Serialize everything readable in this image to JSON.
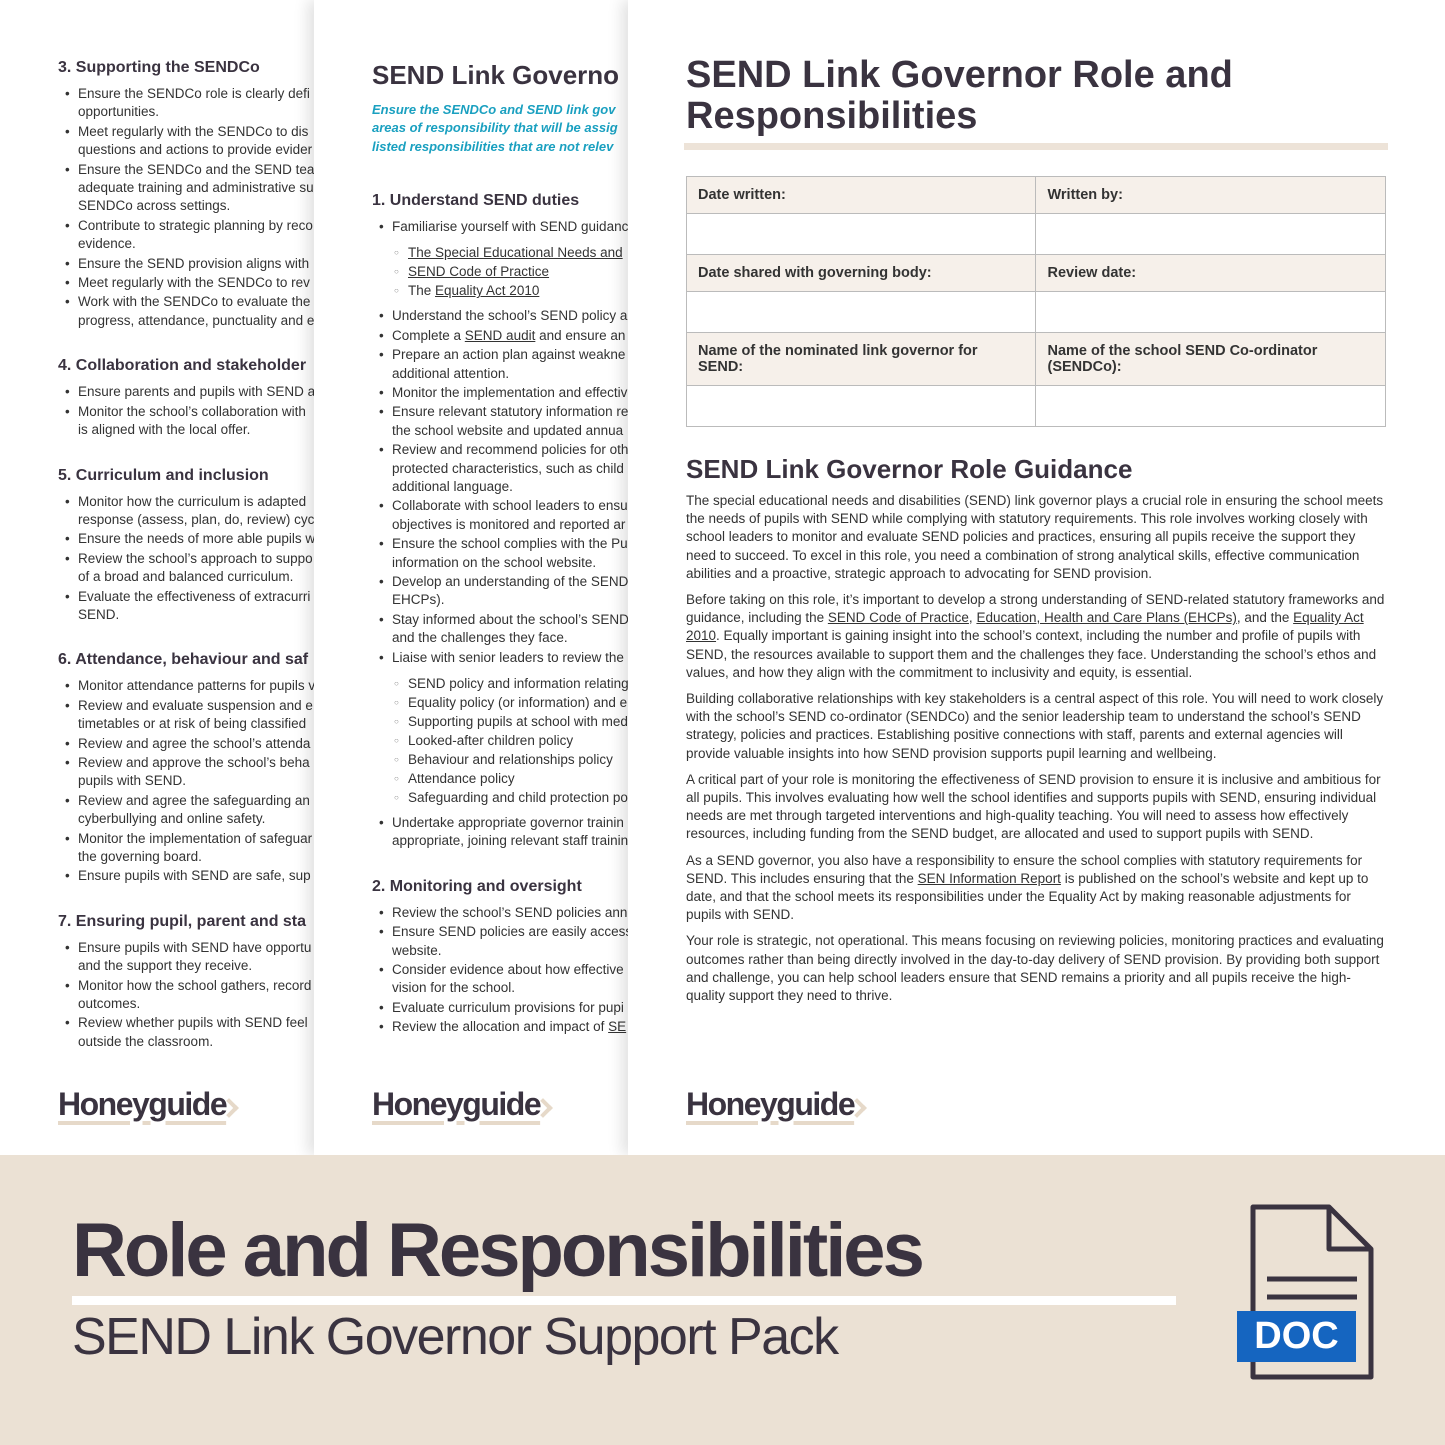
{
  "back_page": {
    "sections": [
      {
        "heading": "3. Supporting the SENDCo",
        "items": [
          {
            "lines": [
              "Ensure the SENDCo role is clearly defi",
              "opportunities."
            ]
          },
          {
            "lines": [
              "Meet regularly with the SENDCo to dis",
              "questions and actions to provide evider"
            ]
          },
          {
            "lines": [
              "Ensure the SENDCo and the SEND tea",
              "adequate training and administrative su",
              "SENDCo across settings."
            ]
          },
          {
            "lines": [
              "Contribute to strategic planning by reco",
              "evidence."
            ]
          },
          {
            "lines": [
              "Ensure the SEND provision aligns with"
            ]
          },
          {
            "lines": [
              "Meet regularly with the SENDCo to rev"
            ]
          },
          {
            "lines": [
              "Work with the SENDCo to evaluate the",
              "progress, attendance, punctuality and e"
            ]
          }
        ]
      },
      {
        "heading": "4. Collaboration and stakeholder",
        "items": [
          {
            "lines": [
              "Ensure parents and pupils with SEND a"
            ]
          },
          {
            "lines": [
              "Monitor the school’s collaboration with",
              "is aligned with the local offer."
            ]
          }
        ]
      },
      {
        "heading": "5. Curriculum and inclusion",
        "items": [
          {
            "lines": [
              "Monitor how the curriculum is adapted",
              "response (assess, plan, do, review) cyc"
            ]
          },
          {
            "lines": [
              "Ensure the needs of more able pupils w"
            ]
          },
          {
            "lines": [
              "Review the school’s approach to suppo",
              "of a broad and balanced curriculum."
            ]
          },
          {
            "lines": [
              "Evaluate the effectiveness of extracurri",
              "SEND."
            ]
          }
        ]
      },
      {
        "heading": "6. Attendance, behaviour and saf",
        "items": [
          {
            "lines": [
              "Monitor attendance patterns for pupils v"
            ]
          },
          {
            "lines": [
              "Review and evaluate suspension and e",
              "timetables or at risk of being classified"
            ]
          },
          {
            "lines": [
              "Review and agree the school’s attenda"
            ]
          },
          {
            "lines": [
              "Review and approve the school’s beha",
              "pupils with SEND."
            ]
          },
          {
            "lines": [
              "Review and agree the safeguarding an",
              "cyberbullying and online safety."
            ]
          },
          {
            "lines": [
              "Monitor the implementation of safeguar",
              "the governing board."
            ]
          },
          {
            "lines": [
              "Ensure pupils with SEND are safe, sup"
            ]
          }
        ]
      },
      {
        "heading": "7. Ensuring pupil, parent and sta",
        "items": [
          {
            "lines": [
              "Ensure pupils with SEND have opportu",
              "and the support they receive."
            ]
          },
          {
            "lines": [
              "Monitor how the school gathers, record",
              "outcomes."
            ]
          },
          {
            "lines": [
              "Review whether pupils with SEND feel",
              "outside the classroom."
            ]
          }
        ]
      }
    ],
    "logo": "Honeyguide"
  },
  "middle_page": {
    "title": "SEND Link Governo",
    "intro": [
      "Ensure the SENDCo and SEND link gov",
      "areas of responsibility that will be assig",
      "listed responsibilities that are not relev"
    ],
    "sections": [
      {
        "heading": "1. Understand SEND duties",
        "items": [
          {
            "lines": [
              "Familiarise yourself with SEND guidanc"
            ],
            "sub": [
              [
                {
                  "link": "The Special Educational Needs and"
                }
              ],
              [
                {
                  "link": "SEND Code of Practice"
                }
              ],
              [
                "The ",
                {
                  "link": "Equality Act 2010"
                }
              ]
            ]
          },
          {
            "lines": [
              "Understand the school’s SEND policy a"
            ]
          },
          {
            "lines": [
              [
                "Complete a ",
                {
                  "link": "SEND audit"
                },
                " and ensure an"
              ]
            ]
          },
          {
            "lines": [
              "Prepare an action plan against weakne",
              "additional attention."
            ]
          },
          {
            "lines": [
              "Monitor the implementation and effectiv"
            ]
          },
          {
            "lines": [
              "Ensure relevant statutory information re",
              "the school website and updated annua"
            ]
          },
          {
            "lines": [
              "Review and recommend policies for oth",
              "protected characteristics, such as child",
              "additional language."
            ]
          },
          {
            "lines": [
              "Collaborate with school leaders to ensu",
              "objectives is monitored and reported ar"
            ]
          },
          {
            "lines": [
              "Ensure the school complies with the Pu",
              "information on the school website."
            ]
          },
          {
            "lines": [
              "Develop an understanding of the SEND",
              "EHCPs)."
            ]
          },
          {
            "lines": [
              "Stay informed about the school’s SEND",
              "and the challenges they face."
            ]
          },
          {
            "lines": [
              "Liaise with senior leaders to review the"
            ],
            "sub": [
              "SEND policy and information relating",
              "Equality policy (or information) and e",
              "Supporting pupils at school with med",
              "Looked-after children policy",
              "Behaviour and relationships policy",
              "Attendance policy",
              "Safeguarding and child protection po"
            ]
          },
          {
            "lines": [
              "Undertake appropriate governor trainin",
              "appropriate, joining relevant staff trainin"
            ]
          }
        ]
      },
      {
        "heading": "2. Monitoring and oversight",
        "items": [
          {
            "lines": [
              "Review the school’s SEND policies ann"
            ]
          },
          {
            "lines": [
              "Ensure SEND policies are easily access",
              "website."
            ]
          },
          {
            "lines": [
              "Consider evidence about how effective",
              "vision for the school."
            ]
          },
          {
            "lines": [
              "Evaluate curriculum provisions for pupi"
            ]
          },
          {
            "lines": [
              [
                "Review the allocation and impact of ",
                {
                  "link": "SE"
                }
              ]
            ]
          }
        ]
      }
    ],
    "logo": "Honeyguide"
  },
  "front_page": {
    "title": "SEND Link Governor Role and Responsibilities",
    "table": {
      "rows": [
        [
          "Date written:",
          "Written by:"
        ],
        [
          "Date shared with governing body:",
          "Review date:"
        ],
        [
          "Name of the nominated link governor for SEND:",
          "Name of the school SEND Co-ordinator (SENDCo):"
        ]
      ]
    },
    "heading": "SEND Link Governor Role Guidance",
    "paragraphs": [
      [
        "The special educational needs and disabilities (SEND) link governor plays a crucial role in ensuring the school meets the needs of pupils with SEND while complying with statutory requirements. This role involves working closely with school leaders to monitor and evaluate SEND policies and practices, ensuring all pupils receive the support they need to succeed. To excel in this role, you need a combination of strong analytical skills, effective communication abilities and a proactive, strategic approach to advocating for SEND provision."
      ],
      [
        "Before taking on this role, it’s important to develop a strong understanding of SEND-related statutory frameworks and guidance, including the ",
        {
          "link": "SEND Code of Practice"
        },
        ", ",
        {
          "link": "Education, Health and Care Plans (EHCPs)"
        },
        ", and the ",
        {
          "link": "Equality Act 2010"
        },
        ". Equally important is gaining insight into the school’s context, including the number and profile of pupils with SEND, the resources available to support them and the challenges they face. Understanding the school’s ethos and values, and how they align with the commitment to inclusivity and equity, is essential."
      ],
      [
        "Building collaborative relationships with key stakeholders is a central aspect of this role. You will need to work closely with the school’s SEND co-ordinator (SENDCo) and the senior leadership team to understand the school’s SEND strategy, policies and practices. Establishing positive connections with staff, parents and external agencies will provide valuable insights into how SEND provision supports pupil learning and wellbeing."
      ],
      [
        "A critical part of your role is monitoring the effectiveness of SEND provision to ensure it is inclusive and ambitious for all pupils. This involves evaluating how well the school identifies and supports pupils with SEND, ensuring individual needs are met through targeted interventions and high-quality teaching. You will need to assess how effectively resources, including funding from the SEND budget, are allocated and used to support pupils with SEND."
      ],
      [
        "As a SEND governor, you also have a responsibility to ensure the school complies with statutory requirements for SEND. This includes ensuring that the ",
        {
          "link": "SEN Information Report"
        },
        " is published on the school’s website and kept up to date, and that the school meets its responsibilities under the Equality Act by making reasonable adjustments for pupils with SEND."
      ],
      [
        "Your role is strategic, not operational. This means focusing on reviewing policies, monitoring practices and evaluating outcomes rather than being directly involved in the day-to-day delivery of SEND provision. By providing both support and challenge, you can help school leaders ensure that SEND remains a priority and all pupils receive the high-quality support they need to thrive."
      ]
    ],
    "logo": "Honeyguide"
  },
  "banner": {
    "title": "Role and Responsibilities",
    "subtitle": "SEND Link Governor Support Pack",
    "badge": "DOC"
  }
}
